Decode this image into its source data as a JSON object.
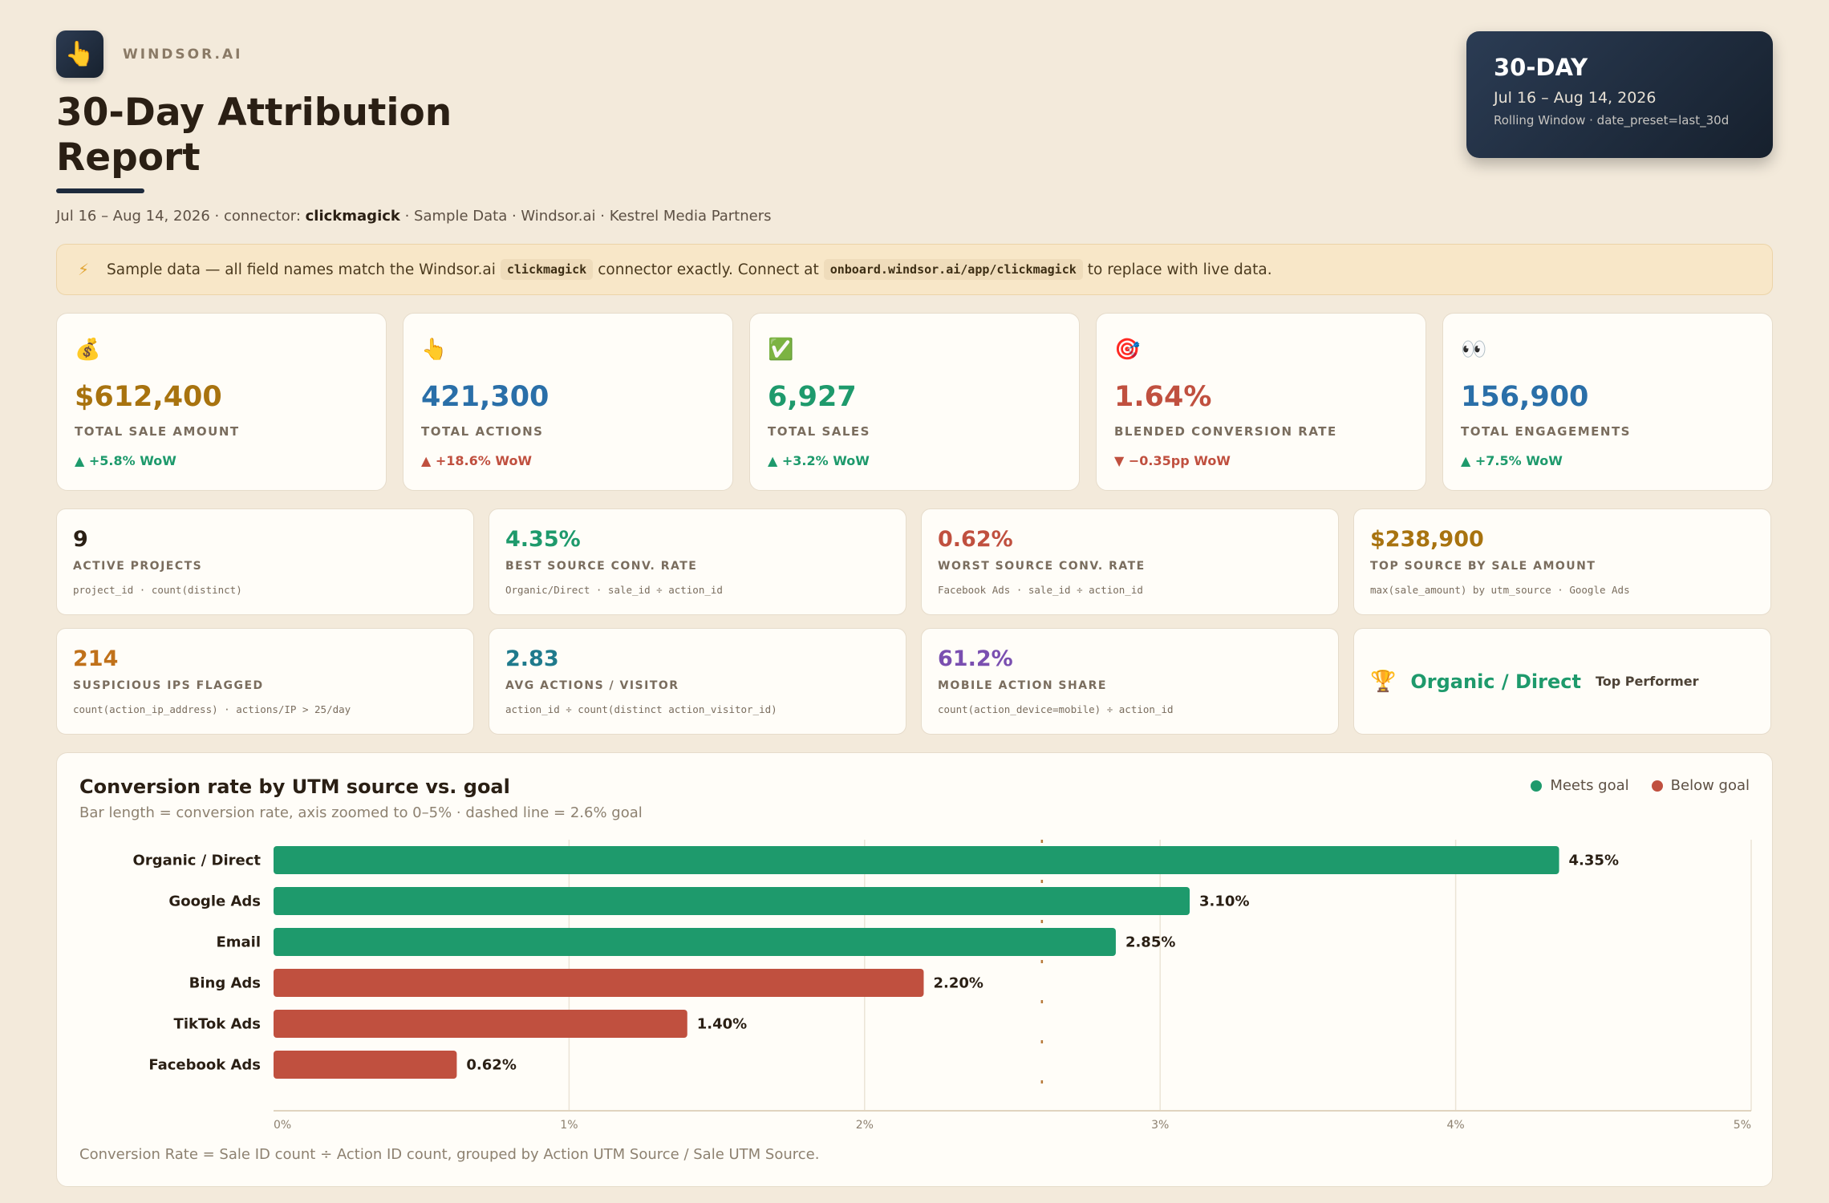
{
  "header": {
    "brand_icon": "👆",
    "brand_name": "WINDSOR.AI",
    "title": "30-Day Attribution Report",
    "subtitle_prefix": "Jul 16 – Aug 14, 2026 · connector: ",
    "subtitle_connector": "clickmagick",
    "subtitle_suffix": " · Sample Data · Windsor.ai · Kestrel Media Partners"
  },
  "badge": {
    "title": "30-DAY",
    "range": "Jul 16 – Aug 14, 2026",
    "note": "Rolling Window · date_preset=last_30d"
  },
  "notice": {
    "icon": "⚡",
    "text1": "Sample data — all field names match the Windsor.ai",
    "code1": "clickmagick",
    "text2": "connector exactly. Connect at",
    "code2": "onboard.windsor.ai/app/clickmagick",
    "text3": "to replace with live data."
  },
  "kpis": [
    {
      "icon": "💰",
      "value": "$612,400",
      "label": "TOTAL SALE AMOUNT",
      "delta": "▲ +5.8% WoW",
      "color": "#a8730f",
      "delta_color": "#1e9a6c"
    },
    {
      "icon": "👆",
      "value": "421,300",
      "label": "TOTAL ACTIONS",
      "delta": "▲ +18.6% WoW",
      "color": "#2a6fa8",
      "delta_color": "#c0503f"
    },
    {
      "icon": "✅",
      "value": "6,927",
      "label": "TOTAL SALES",
      "delta": "▲ +3.2% WoW",
      "color": "#1e9a6c",
      "delta_color": "#1e9a6c"
    },
    {
      "icon": "🎯",
      "value": "1.64%",
      "label": "BLENDED CONVERSION RATE",
      "delta": "▼ −0.35pp WoW",
      "color": "#c0503f",
      "delta_color": "#c0503f"
    },
    {
      "icon": "👀",
      "value": "156,900",
      "label": "TOTAL ENGAGEMENTS",
      "delta": "▲ +7.5% WoW",
      "color": "#2a6fa8",
      "delta_color": "#1e9a6c"
    }
  ],
  "metrics": [
    {
      "value": "9",
      "label": "ACTIVE PROJECTS",
      "formula": "project_id · count(distinct)",
      "color": "#2a1f14"
    },
    {
      "value": "4.35%",
      "label": "BEST SOURCE CONV. RATE",
      "formula": "Organic/Direct · sale_id ÷ action_id",
      "color": "#1e9a6c"
    },
    {
      "value": "0.62%",
      "label": "WORST SOURCE CONV. RATE",
      "formula": "Facebook Ads · sale_id ÷ action_id",
      "color": "#c0503f"
    },
    {
      "value": "$238,900",
      "label": "TOP SOURCE BY SALE AMOUNT",
      "formula": "max(sale_amount) by utm_source · Google Ads",
      "color": "#a8730f"
    },
    {
      "value": "214",
      "label": "SUSPICIOUS IPS FLAGGED",
      "formula": "count(action_ip_address) · actions/IP > 25/day",
      "color": "#c0711a"
    },
    {
      "value": "2.83",
      "label": "AVG ACTIONS / VISITOR",
      "formula": "action_id ÷ count(distinct action_visitor_id)",
      "color": "#1f7a8c"
    },
    {
      "value": "61.2%",
      "label": "MOBILE ACTION SHARE",
      "formula": "count(action_device=mobile) ÷ action_id",
      "color": "#7a4fb0"
    }
  ],
  "top_performer": {
    "icon": "🏆",
    "name": "Organic / Direct",
    "tag": "Top Performer"
  },
  "chart": {
    "title": "Conversion rate by UTM source vs. goal",
    "subtitle": "Bar length = conversion rate, axis zoomed to 0–5% · dashed line = 2.6% goal",
    "legend_meets": "Meets goal",
    "legend_below": "Below goal",
    "footnote": "Conversion Rate = Sale ID count ÷ Action ID count, grouped by Action UTM Source / Sale UTM Source.",
    "colors": {
      "meets": "#1e9a6c",
      "below": "#c0503f",
      "goal": "#b87a3a"
    }
  },
  "chart_data": {
    "type": "bar",
    "orientation": "horizontal",
    "title": "Conversion rate by UTM source vs. goal",
    "subtitle": "Bar length = conversion rate, axis zoomed to 0–5% · dashed line = 2.6% goal",
    "categories": [
      "Organic / Direct",
      "Google Ads",
      "Email",
      "Bing Ads",
      "TikTok Ads",
      "Facebook Ads"
    ],
    "values": [
      4.35,
      3.1,
      2.85,
      2.2,
      1.4,
      0.62
    ],
    "value_labels": [
      "4.35%",
      "3.10%",
      "2.85%",
      "2.20%",
      "1.40%",
      "0.62%"
    ],
    "status": [
      "Meets goal",
      "Meets goal",
      "Meets goal",
      "Below goal",
      "Below goal",
      "Below goal"
    ],
    "goal": 2.6,
    "xlim": [
      0,
      5
    ],
    "xticks": [
      "0%",
      "1%",
      "2%",
      "3%",
      "4%",
      "5%"
    ],
    "grid": true,
    "legend": [
      "Meets goal",
      "Below goal"
    ],
    "legend_position": "top-right"
  }
}
